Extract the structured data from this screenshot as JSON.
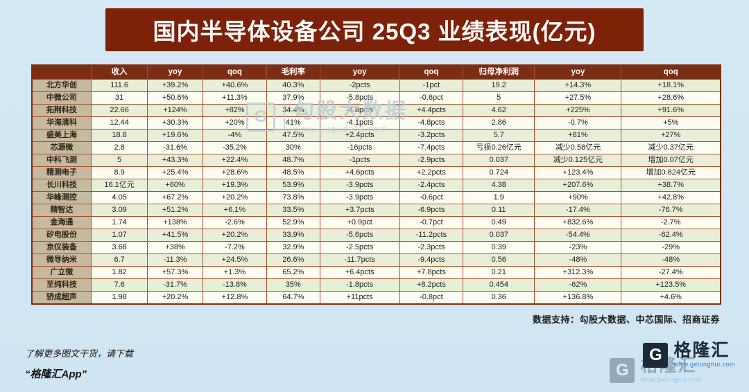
{
  "title": "国内半导体设备公司 25Q3 业绩表现(亿元)",
  "chart_data": {
    "type": "table",
    "title": "国内半导体设备公司 25Q3 业绩表现(亿元)",
    "columns": [
      "",
      "收入",
      "yoy",
      "qoq",
      "毛利率",
      "yoy",
      "qoq",
      "归母净利润",
      "yoy",
      "qoq"
    ],
    "rows": [
      {
        "name": "北方华创",
        "values": [
          "111.6",
          "+39.2%",
          "+40.6%",
          "40.3%",
          "-2pcts",
          "-1pct",
          "19.2",
          "+14.3%",
          "+18.1%"
        ]
      },
      {
        "name": "中微公司",
        "values": [
          "31",
          "+50.6%",
          "+11.3%",
          "37.9%",
          "-5.8pcts",
          "-0.6pct",
          "5",
          "+27.5%",
          "+28.6%"
        ]
      },
      {
        "name": "拓荆科技",
        "values": [
          "22.66",
          "+124%",
          "+82%",
          "34.4%",
          "-4.8pcts",
          "+4.4pcts",
          "4.62",
          "+225%",
          "+91.6%"
        ]
      },
      {
        "name": "华海清科",
        "values": [
          "12.44",
          "+30.3%",
          "+20%",
          "41%",
          "-4.1pcts",
          "-4.8pcts",
          "2.86",
          "-0.7%",
          "+5%"
        ]
      },
      {
        "name": "盛美上海",
        "values": [
          "18.8",
          "+19.6%",
          "-4%",
          "47.5%",
          "+2.4pcts",
          "-3.2pcts",
          "5.7",
          "+81%",
          "+27%"
        ]
      },
      {
        "name": "芯源微",
        "values": [
          "2.8",
          "-31.6%",
          "-35.2%",
          "30%",
          "-16pcts",
          "-7.4pcts",
          "亏损0.26亿元",
          "减少0.58亿元",
          "减少0.37亿元"
        ]
      },
      {
        "name": "中科飞测",
        "values": [
          "5",
          "+43.3%",
          "+22.4%",
          "48.7%",
          "-1pcts",
          "-2.9pcts",
          "0.037",
          "减少0.125亿元",
          "增加0.07亿元"
        ]
      },
      {
        "name": "精测电子",
        "values": [
          "8.9",
          "+25.4%",
          "+28.6%",
          "48.5%",
          "+4.6pcts",
          "+2.2pcts",
          "0.724",
          "+123.4%",
          "增加0.824亿元"
        ]
      },
      {
        "name": "长川科技",
        "values": [
          "16.1亿元",
          "+60%",
          "+19.3%",
          "53.9%",
          "-3.9pcts",
          "-2.4pcts",
          "4.38",
          "+207.6%",
          "+38.7%"
        ]
      },
      {
        "name": "华峰测控",
        "values": [
          "4.05",
          "+67.2%",
          "+20.2%",
          "73.8%",
          "-3.9pcts",
          "-0.6pct",
          "1.9",
          "+90%",
          "+42.8%"
        ]
      },
      {
        "name": "精智达",
        "values": [
          "3.09",
          "+51.2%",
          "+6.1%",
          "33.5%",
          "+3.7pcts",
          "-6.9pcts",
          "0.11",
          "-17.4%",
          "-76.7%"
        ]
      },
      {
        "name": "金海通",
        "values": [
          "1.74",
          "+138%",
          "-2.6%",
          "52.9%",
          "+0.9pct",
          "-0.7pct",
          "0.49",
          "+832.6%",
          "-2.7%"
        ]
      },
      {
        "name": "矽电股份",
        "values": [
          "1.07",
          "+41.5%",
          "+20.2%",
          "33.9%",
          "-5.6pcts",
          "-11.2pcts",
          "0.037",
          "-54.4%",
          "-62.4%"
        ]
      },
      {
        "name": "京仪装备",
        "values": [
          "3.68",
          "+38%",
          "-7.2%",
          "32.9%",
          "-2.5pcts",
          "-2.3pcts",
          "0.39",
          "-23%",
          "-29%"
        ]
      },
      {
        "name": "微导纳米",
        "values": [
          "6.7",
          "-11.3%",
          "+24.5%",
          "26.6%",
          "-11.7pcts",
          "-9.4pcts",
          "0.56",
          "-48%",
          "-48%"
        ]
      },
      {
        "name": "广立微",
        "values": [
          "1.82",
          "+57.3%",
          "+1.3%",
          "65.2%",
          "+6.4pcts",
          "+7.8pcts",
          "0.21",
          "+312.3%",
          "-27.4%"
        ]
      },
      {
        "name": "至纯科技",
        "values": [
          "7.6",
          "-31.7%",
          "-13.8%",
          "35%",
          "-1.8pcts",
          "+8.2pcts",
          "0.454",
          "-62%",
          "+123.5%"
        ]
      },
      {
        "name": "骄成超声",
        "values": [
          "1.98",
          "+20.2%",
          "+12.8%",
          "64.7%",
          "+11pcts",
          "-0.8pct",
          "0.36",
          "+136.8%",
          "+4.6%"
        ]
      }
    ]
  },
  "watermark": {
    "letter": "G",
    "brand": "勾股大数据",
    "url": "www.gugudata.com"
  },
  "footer": {
    "data_support": "数据支持：勾股大数据、中芯国际、招商证券",
    "promo_line1": "了解更多图文干货，请下载",
    "promo_line2": "“格隆汇App”"
  },
  "logo": {
    "letter": "G",
    "name": "格隆汇",
    "url": "www.gelonghui.com"
  },
  "colors": {
    "background": "#d2e6f3",
    "banner": "#7d2208",
    "header_row": "#7c2e14",
    "name_column": "#c7b99d",
    "row_odd": "#e9efd7",
    "row_even": "#fcfcf0",
    "grid": "#a8502c"
  }
}
